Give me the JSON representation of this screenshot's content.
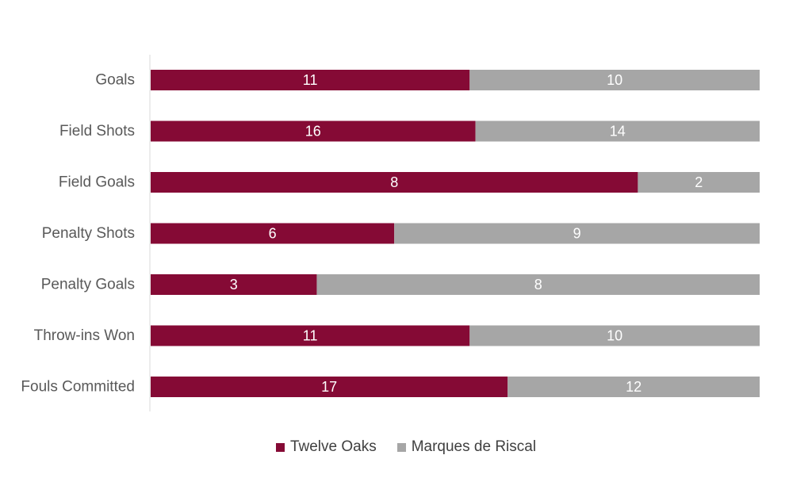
{
  "chart_data": {
    "type": "bar",
    "orientation": "horizontal",
    "stacking": "percent",
    "title": "",
    "xlabel": "",
    "ylabel": "",
    "grid": false,
    "legend_position": "bottom",
    "categories": [
      "Goals",
      "Field Shots",
      "Field Goals",
      "Penalty Shots",
      "Penalty Goals",
      "Throw-ins Won",
      "Fouls Committed"
    ],
    "series": [
      {
        "name": "Twelve Oaks",
        "color": "#850a35",
        "values": [
          11,
          16,
          8,
          6,
          3,
          11,
          17
        ]
      },
      {
        "name": "Marques de Riscal",
        "color": "#a6a6a6",
        "values": [
          10,
          14,
          2,
          9,
          8,
          10,
          12
        ]
      }
    ]
  }
}
